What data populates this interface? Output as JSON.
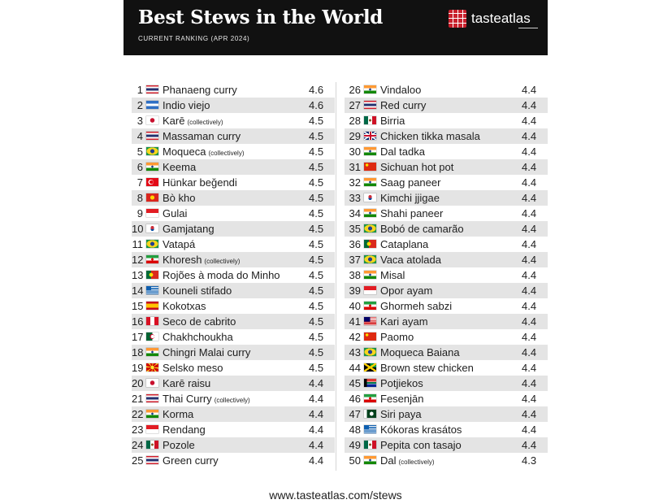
{
  "header": {
    "title": "Best Stews in the World",
    "subtitle": "CURRENT RANKING (APR 2024)",
    "brand": "tasteatlas"
  },
  "colors": {
    "header_bg": "#111111",
    "brand_red": "#c8202c",
    "row_stripe": "#e4e4e4",
    "text": "#1e1e1e"
  },
  "left_column": [
    {
      "rank": "1",
      "name": "Phanaeng curry",
      "note": "",
      "rating": "4.6",
      "flag": "thailand-flag-icon"
    },
    {
      "rank": "2",
      "name": "Indio viejo",
      "note": "",
      "rating": "4.6",
      "flag": "nicaragua-flag-icon"
    },
    {
      "rank": "3",
      "name": "Karē",
      "note": "(collectively)",
      "rating": "4.5",
      "flag": "japan-flag-icon"
    },
    {
      "rank": "4",
      "name": "Massaman curry",
      "note": "",
      "rating": "4.5",
      "flag": "thailand-flag-icon"
    },
    {
      "rank": "5",
      "name": "Moqueca",
      "note": "(collectively)",
      "rating": "4.5",
      "flag": "brazil-flag-icon"
    },
    {
      "rank": "6",
      "name": "Keema",
      "note": "",
      "rating": "4.5",
      "flag": "india-flag-icon"
    },
    {
      "rank": "7",
      "name": "Hünkar beğendi",
      "note": "",
      "rating": "4.5",
      "flag": "turkey-flag-icon"
    },
    {
      "rank": "8",
      "name": "Bò kho",
      "note": "",
      "rating": "4.5",
      "flag": "vietnam-flag-icon"
    },
    {
      "rank": "9",
      "name": "Gulai",
      "note": "",
      "rating": "4.5",
      "flag": "indonesia-flag-icon"
    },
    {
      "rank": "10",
      "name": "Gamjatang",
      "note": "",
      "rating": "4.5",
      "flag": "south-korea-flag-icon"
    },
    {
      "rank": "11",
      "name": "Vatapá",
      "note": "",
      "rating": "4.5",
      "flag": "brazil-flag-icon"
    },
    {
      "rank": "12",
      "name": "Khoresh",
      "note": "(collectively)",
      "rating": "4.5",
      "flag": "iran-flag-icon"
    },
    {
      "rank": "13",
      "name": "Rojões à moda do Minho",
      "note": "",
      "rating": "4.5",
      "flag": "portugal-flag-icon"
    },
    {
      "rank": "14",
      "name": "Kouneli stifado",
      "note": "",
      "rating": "4.5",
      "flag": "greece-flag-icon"
    },
    {
      "rank": "15",
      "name": "Kokotxas",
      "note": "",
      "rating": "4.5",
      "flag": "spain-flag-icon"
    },
    {
      "rank": "16",
      "name": "Seco de cabrito",
      "note": "",
      "rating": "4.5",
      "flag": "peru-flag-icon"
    },
    {
      "rank": "17",
      "name": "Chakhchoukha",
      "note": "",
      "rating": "4.5",
      "flag": "algeria-flag-icon"
    },
    {
      "rank": "18",
      "name": "Chingri Malai curry",
      "note": "",
      "rating": "4.5",
      "flag": "india-flag-icon"
    },
    {
      "rank": "19",
      "name": "Selsko meso",
      "note": "",
      "rating": "4.5",
      "flag": "north-macedonia-flag-icon"
    },
    {
      "rank": "20",
      "name": "Karē raisu",
      "note": "",
      "rating": "4.4",
      "flag": "japan-flag-icon"
    },
    {
      "rank": "21",
      "name": "Thai Curry",
      "note": "(collectively)",
      "rating": "4.4",
      "flag": "thailand-flag-icon"
    },
    {
      "rank": "22",
      "name": "Korma",
      "note": "",
      "rating": "4.4",
      "flag": "india-flag-icon"
    },
    {
      "rank": "23",
      "name": "Rendang",
      "note": "",
      "rating": "4.4",
      "flag": "indonesia-flag-icon"
    },
    {
      "rank": "24",
      "name": "Pozole",
      "note": "",
      "rating": "4.4",
      "flag": "mexico-flag-icon"
    },
    {
      "rank": "25",
      "name": "Green curry",
      "note": "",
      "rating": "4.4",
      "flag": "thailand-flag-icon"
    }
  ],
  "right_column": [
    {
      "rank": "26",
      "name": "Vindaloo",
      "note": "",
      "rating": "4.4",
      "flag": "india-flag-icon"
    },
    {
      "rank": "27",
      "name": "Red curry",
      "note": "",
      "rating": "4.4",
      "flag": "thailand-flag-icon"
    },
    {
      "rank": "28",
      "name": "Birria",
      "note": "",
      "rating": "4.4",
      "flag": "mexico-flag-icon"
    },
    {
      "rank": "29",
      "name": "Chicken tikka masala",
      "note": "",
      "rating": "4.4",
      "flag": "uk-flag-icon"
    },
    {
      "rank": "30",
      "name": "Dal tadka",
      "note": "",
      "rating": "4.4",
      "flag": "india-flag-icon"
    },
    {
      "rank": "31",
      "name": "Sichuan hot pot",
      "note": "",
      "rating": "4.4",
      "flag": "china-flag-icon"
    },
    {
      "rank": "32",
      "name": "Saag paneer",
      "note": "",
      "rating": "4.4",
      "flag": "india-flag-icon"
    },
    {
      "rank": "33",
      "name": "Kimchi jjigae",
      "note": "",
      "rating": "4.4",
      "flag": "south-korea-flag-icon"
    },
    {
      "rank": "34",
      "name": "Shahi paneer",
      "note": "",
      "rating": "4.4",
      "flag": "india-flag-icon"
    },
    {
      "rank": "35",
      "name": "Bobó de camarão",
      "note": "",
      "rating": "4.4",
      "flag": "brazil-flag-icon"
    },
    {
      "rank": "36",
      "name": "Cataplana",
      "note": "",
      "rating": "4.4",
      "flag": "portugal-flag-icon"
    },
    {
      "rank": "37",
      "name": "Vaca atolada",
      "note": "",
      "rating": "4.4",
      "flag": "brazil-flag-icon"
    },
    {
      "rank": "38",
      "name": "Misal",
      "note": "",
      "rating": "4.4",
      "flag": "india-flag-icon"
    },
    {
      "rank": "39",
      "name": "Opor ayam",
      "note": "",
      "rating": "4.4",
      "flag": "indonesia-flag-icon"
    },
    {
      "rank": "40",
      "name": "Ghormeh sabzi",
      "note": "",
      "rating": "4.4",
      "flag": "iran-flag-icon"
    },
    {
      "rank": "41",
      "name": "Kari ayam",
      "note": "",
      "rating": "4.4",
      "flag": "malaysia-flag-icon"
    },
    {
      "rank": "42",
      "name": "Paomo",
      "note": "",
      "rating": "4.4",
      "flag": "china-flag-icon"
    },
    {
      "rank": "43",
      "name": "Moqueca Baiana",
      "note": "",
      "rating": "4.4",
      "flag": "brazil-flag-icon"
    },
    {
      "rank": "44",
      "name": "Brown stew chicken",
      "note": "",
      "rating": "4.4",
      "flag": "jamaica-flag-icon"
    },
    {
      "rank": "45",
      "name": "Potjiekos",
      "note": "",
      "rating": "4.4",
      "flag": "south-africa-flag-icon"
    },
    {
      "rank": "46",
      "name": "Fesenjān",
      "note": "",
      "rating": "4.4",
      "flag": "iran-flag-icon"
    },
    {
      "rank": "47",
      "name": "Siri paya",
      "note": "",
      "rating": "4.4",
      "flag": "pakistan-flag-icon"
    },
    {
      "rank": "48",
      "name": "Kókoras krasátos",
      "note": "",
      "rating": "4.4",
      "flag": "greece-flag-icon"
    },
    {
      "rank": "49",
      "name": "Pepita con tasajo",
      "note": "",
      "rating": "4.4",
      "flag": "mexico-flag-icon"
    },
    {
      "rank": "50",
      "name": "Dal",
      "note": "(collectively)",
      "rating": "4.3",
      "flag": "india-flag-icon"
    }
  ],
  "footer": {
    "url": "www.tasteatlas.com/stews"
  }
}
